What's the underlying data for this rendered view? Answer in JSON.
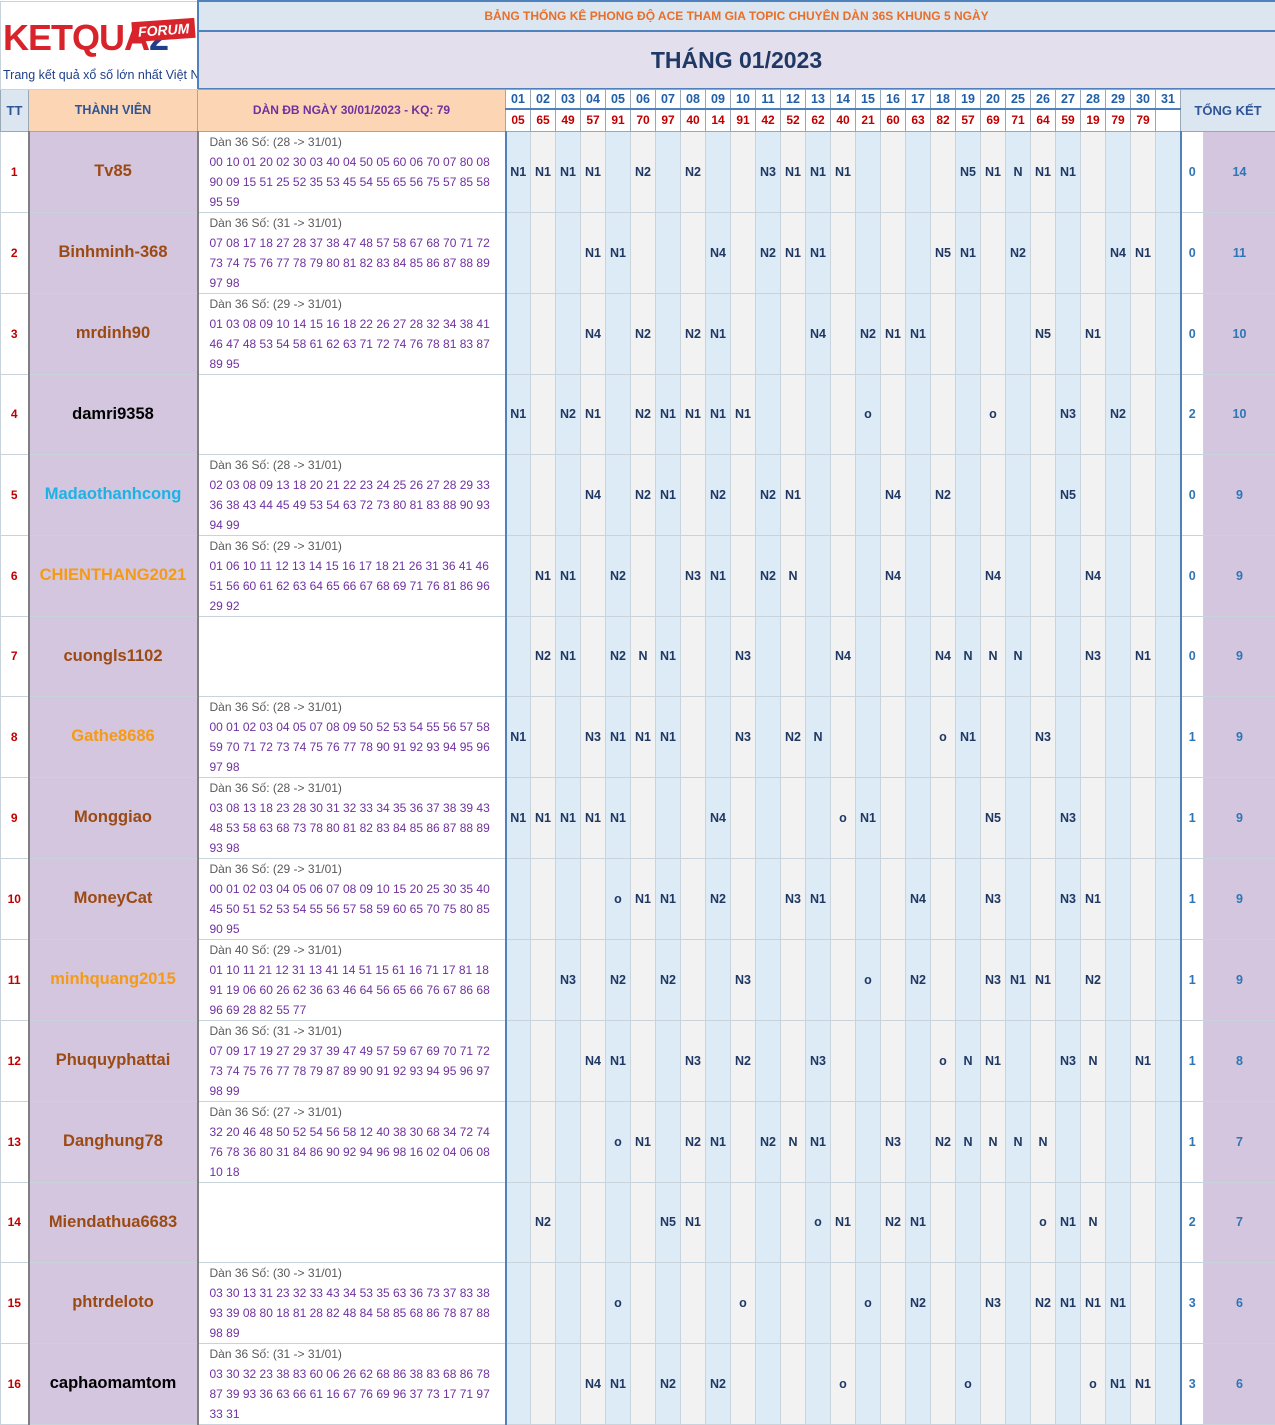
{
  "logo": {
    "word_red": "KETQUA",
    "word_navy": "2",
    "forum": "FORUM",
    "sub": "Trang kết quả xổ số lớn nhất Việt Nam"
  },
  "banner_title": "BẢNG THỐNG KÊ PHONG ĐỘ ACE THAM GIA TOPIC CHUYÊN DÀN 36S KHUNG 5 NGÀY",
  "month_title": "THÁNG 01/2023",
  "headers": {
    "tt": "TT",
    "member": "THÀNH VIÊN",
    "dan": "DÀN ĐB NGÀY 30/01/2023 - KQ: 79",
    "total": "TỔNG KẾT"
  },
  "days": [
    "01",
    "02",
    "03",
    "04",
    "05",
    "06",
    "07",
    "08",
    "09",
    "10",
    "11",
    "12",
    "13",
    "14",
    "15",
    "16",
    "17",
    "18",
    "19",
    "20",
    "25",
    "26",
    "27",
    "28",
    "29",
    "30",
    "31"
  ],
  "results": [
    "05",
    "65",
    "49",
    "57",
    "91",
    "70",
    "97",
    "40",
    "14",
    "91",
    "42",
    "52",
    "62",
    "40",
    "21",
    "60",
    "63",
    "82",
    "57",
    "69",
    "71",
    "64",
    "59",
    "19",
    "79",
    "79",
    ""
  ],
  "colors": {
    "name_bg": "#d3c6de",
    "col_blue": "#ddebf7",
    "col_gray": "#f2f2f2",
    "result_red": "#c00000",
    "banner_orange": "#e96e28"
  },
  "rows": [
    {
      "tt": "1",
      "name": "Tv85",
      "color": "brown",
      "dan": [
        "Dàn 36 Số: (28 -> 31/01)",
        "00 10 01 20 02 30 03 40 04 50 05 60 06 70 07 80 08",
        "90 09 15 51 25 52 35 53 45 54 55 65 56 75 57 85 58",
        "95 59"
      ],
      "cells": [
        "N1",
        "N1",
        "N1",
        "N1",
        "",
        "N2",
        "",
        "N2",
        "",
        "",
        "N3",
        "N1",
        "N1",
        "N1",
        "",
        "",
        "",
        "",
        "N5",
        "N1",
        "N",
        "N1",
        "N1",
        "",
        "",
        "",
        ""
      ],
      "total_a": "0",
      "total_b": "14"
    },
    {
      "tt": "2",
      "name": "Binhminh-368",
      "color": "brown",
      "dan": [
        "Dàn 36 Số: (31 -> 31/01)",
        "07 08 17 18 27 28 37 38 47 48 57 58 67 68 70 71 72",
        "73 74 75 76 77 78 79 80 81 82 83 84 85 86 87 88 89",
        "97 98"
      ],
      "cells": [
        "",
        "",
        "",
        "N1",
        "N1",
        "",
        "",
        "",
        "N4",
        "",
        "N2",
        "N1",
        "N1",
        "",
        "",
        "",
        "",
        "N5",
        "N1",
        "",
        "N2",
        "",
        "",
        "",
        "N4",
        "N1",
        ""
      ],
      "total_a": "0",
      "total_b": "11"
    },
    {
      "tt": "3",
      "name": "mrdinh90",
      "color": "brown",
      "dan": [
        "Dàn 36 Số: (29 -> 31/01)",
        "01 03 08 09 10 14 15 16 18 22 26 27 28 32 34 38 41",
        "46 47 48 53 54 58 61 62 63 71 72 74 76 78 81 83 87",
        "89 95"
      ],
      "cells": [
        "",
        "",
        "",
        "N4",
        "",
        "N2",
        "",
        "N2",
        "N1",
        "",
        "",
        "",
        "N4",
        "",
        "N2",
        "N1",
        "N1",
        "",
        "",
        "",
        "",
        "N5",
        "",
        "N1",
        "",
        "",
        ""
      ],
      "total_a": "0",
      "total_b": "10"
    },
    {
      "tt": "4",
      "name": "damri9358",
      "color": "black",
      "dan": [],
      "cells": [
        "N1",
        "",
        "N2",
        "N1",
        "",
        "N2",
        "N1",
        "N1",
        "N1",
        "N1",
        "",
        "",
        "",
        "",
        "o",
        "",
        "",
        "",
        "",
        "o",
        "",
        "",
        "N3",
        "",
        "N2",
        "",
        ""
      ],
      "total_a": "2",
      "total_b": "10"
    },
    {
      "tt": "5",
      "name": "Madaothanhcong",
      "color": "cyan",
      "dan": [
        "Dàn 36 Số: (28 -> 31/01)",
        "02 03 08 09 13 18 20 21 22 23 24 25 26 27 28 29 33",
        "36 38 43 44 45 49 53 54 63 72 73 80 81 83 88 90 93",
        "94 99"
      ],
      "cells": [
        "",
        "",
        "",
        "N4",
        "",
        "N2",
        "N1",
        "",
        "N2",
        "",
        "N2",
        "N1",
        "",
        "",
        "",
        "N4",
        "",
        "N2",
        "",
        "",
        "",
        "",
        "N5",
        "",
        "",
        "",
        ""
      ],
      "total_a": "0",
      "total_b": "9"
    },
    {
      "tt": "6",
      "name": "CHIENTHANG2021",
      "color": "orange",
      "dan": [
        "Dàn 36 Số: (29 -> 31/01)",
        "01 06 10 11 12 13 14 15 16 17 18 21 26 31 36 41 46",
        "51 56 60 61 62 63 64 65 66 67 68 69 71 76 81 86 96",
        "29 92"
      ],
      "cells": [
        "",
        "N1",
        "N1",
        "",
        "N2",
        "",
        "",
        "N3",
        "N1",
        "",
        "N2",
        "N",
        "",
        "",
        "",
        "N4",
        "",
        "",
        "",
        "N4",
        "",
        "",
        "",
        "N4",
        "",
        "",
        ""
      ],
      "total_a": "0",
      "total_b": "9"
    },
    {
      "tt": "7",
      "name": "cuongls1102",
      "color": "brown",
      "dan": [],
      "cells": [
        "",
        "N2",
        "N1",
        "",
        "N2",
        "N",
        "N1",
        "",
        "",
        "N3",
        "",
        "",
        "",
        "N4",
        "",
        "",
        "",
        "N4",
        "N",
        "N",
        "N",
        "",
        "",
        "N3",
        "",
        "N1",
        ""
      ],
      "total_a": "0",
      "total_b": "9"
    },
    {
      "tt": "8",
      "name": "Gathe8686",
      "color": "orange",
      "dan": [
        "Dàn 36 Số: (28 -> 31/01)",
        "00 01 02 03 04 05 07 08 09 50 52 53 54 55 56 57 58",
        "59 70 71 72 73 74 75 76 77 78 90 91 92 93 94 95 96",
        "97 98"
      ],
      "cells": [
        "N1",
        "",
        "",
        "N3",
        "N1",
        "N1",
        "N1",
        "",
        "",
        "N3",
        "",
        "N2",
        "N",
        "",
        "",
        "",
        "",
        "o",
        "N1",
        "",
        "",
        "N3",
        "",
        "",
        "",
        "",
        ""
      ],
      "total_a": "1",
      "total_b": "9"
    },
    {
      "tt": "9",
      "name": "Monggiao",
      "color": "brown",
      "dan": [
        "Dàn 36 Số: (28 -> 31/01)",
        "03 08 13 18 23 28 30 31 32 33 34 35 36 37 38 39 43",
        "48 53 58 63 68 73 78 80 81 82 83 84 85 86 87 88 89",
        "93 98"
      ],
      "cells": [
        "N1",
        "N1",
        "N1",
        "N1",
        "N1",
        "",
        "",
        "",
        "N4",
        "",
        "",
        "",
        "",
        "o",
        "N1",
        "",
        "",
        "",
        "",
        "N5",
        "",
        "",
        "N3",
        "",
        "",
        "",
        ""
      ],
      "total_a": "1",
      "total_b": "9"
    },
    {
      "tt": "10",
      "name": "MoneyCat",
      "color": "brown",
      "dan": [
        "Dàn 36 Số: (29 -> 31/01)",
        "00 01 02 03 04 05 06 07 08 09 10 15 20 25 30 35 40",
        "45 50 51 52 53 54 55 56 57 58 59 60 65 70 75 80 85",
        "90 95"
      ],
      "cells": [
        "",
        "",
        "",
        "",
        "o",
        "N1",
        "N1",
        "",
        "N2",
        "",
        "",
        "N3",
        "N1",
        "",
        "",
        "",
        "N4",
        "",
        "",
        "N3",
        "",
        "",
        "N3",
        "N1",
        "",
        "",
        ""
      ],
      "total_a": "1",
      "total_b": "9"
    },
    {
      "tt": "11",
      "name": "minhquang2015",
      "color": "orange",
      "dan": [
        "Dàn 40 Số: (29 -> 31/01)",
        "01 10 11 21 12 31 13 41 14 51 15 61 16 71 17 81 18",
        "91 19 06 60 26 62 36 63 46 64 56 65 66 76 67 86 68",
        "96 69 28 82 55 77"
      ],
      "cells": [
        "",
        "",
        "N3",
        "",
        "N2",
        "",
        "N2",
        "",
        "",
        "N3",
        "",
        "",
        "",
        "",
        "o",
        "",
        "N2",
        "",
        "",
        "N3",
        "N1",
        "N1",
        "",
        "N2",
        "",
        "",
        ""
      ],
      "total_a": "1",
      "total_b": "9"
    },
    {
      "tt": "12",
      "name": "Phuquyphattai",
      "color": "brown",
      "dan": [
        "Dàn 36 Số: (31 -> 31/01)",
        "07 09 17 19 27 29 37 39 47 49 57 59 67 69 70 71 72",
        "73 74 75 76 77 78 79 87 89 90 91 92 93 94 95 96 97",
        "98 99"
      ],
      "cells": [
        "",
        "",
        "",
        "N4",
        "N1",
        "",
        "",
        "N3",
        "",
        "N2",
        "",
        "",
        "N3",
        "",
        "",
        "",
        "",
        "o",
        "N",
        "N1",
        "",
        "",
        "N3",
        "N",
        "",
        "N1",
        ""
      ],
      "total_a": "1",
      "total_b": "8"
    },
    {
      "tt": "13",
      "name": "Danghung78",
      "color": "brown",
      "dan": [
        "Dàn 36 Số: (27 -> 31/01)",
        "32 20 46 48 50 52 54 56 58 12 40 38 30 68 34 72 74",
        "76 78 36 80 31 84 86 90 92 94 96 98 16 02 04 06 08",
        "10 18"
      ],
      "cells": [
        "",
        "",
        "",
        "",
        "o",
        "N1",
        "",
        "N2",
        "N1",
        "",
        "N2",
        "N",
        "N1",
        "",
        "",
        "N3",
        "",
        "N2",
        "N",
        "N",
        "N",
        "N",
        "",
        "",
        "",
        "",
        ""
      ],
      "total_a": "1",
      "total_b": "7"
    },
    {
      "tt": "14",
      "name": "Miendathua6683",
      "color": "brown",
      "dan": [],
      "cells": [
        "",
        "N2",
        "",
        "",
        "",
        "",
        "N5",
        "N1",
        "",
        "",
        "",
        "",
        "o",
        "N1",
        "",
        "N2",
        "N1",
        "",
        "",
        "",
        "",
        "o",
        "N1",
        "N",
        "",
        "",
        ""
      ],
      "total_a": "2",
      "total_b": "7"
    },
    {
      "tt": "15",
      "name": "phtrdeloto",
      "color": "brown",
      "dan": [
        "Dàn 36 Số: (30 -> 31/01)",
        "03 30 13 31 23 32 33 43 34 53 35 63 36 73 37 83 38",
        "93 39 08 80 18 81 28 82 48 84 58 85 68 86 78 87 88",
        "98 89"
      ],
      "cells": [
        "",
        "",
        "",
        "",
        "o",
        "",
        "",
        "",
        "",
        "o",
        "",
        "",
        "",
        "",
        "o",
        "",
        "N2",
        "",
        "",
        "N3",
        "",
        "N2",
        "N1",
        "N1",
        "N1",
        "",
        ""
      ],
      "total_a": "3",
      "total_b": "6"
    },
    {
      "tt": "16",
      "name": "caphaomamtom",
      "color": "black",
      "dan": [
        "Dàn 36 Số: (31 -> 31/01)",
        "03 30 32 23 38 83 60 06 26 62 68 86 38 83 68 86 78",
        "87 39 93 36 63 66 61 16 67 76 69 96 37 73 17 71 97",
        "33 31"
      ],
      "cells": [
        "",
        "",
        "",
        "N4",
        "N1",
        "",
        "N2",
        "",
        "N2",
        "",
        "",
        "",
        "",
        "o",
        "",
        "",
        "",
        "",
        "o",
        "",
        "",
        "",
        "",
        "o",
        "N1",
        "N1",
        ""
      ],
      "total_a": "3",
      "total_b": "6"
    }
  ]
}
